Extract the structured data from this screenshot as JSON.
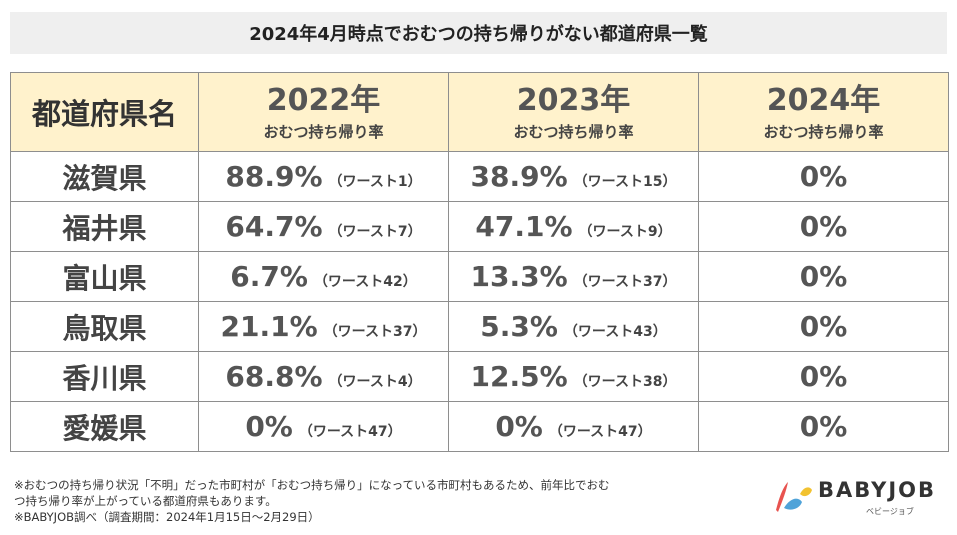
{
  "title": "2024年4月時点でおむつの持ち帰りがない都道府県一覧",
  "table": {
    "pref_header": "都道府県名",
    "year_headers": [
      {
        "year": "2022年",
        "sub": "おむつ持ち帰り率"
      },
      {
        "year": "2023年",
        "sub": "おむつ持ち帰り率"
      },
      {
        "year": "2024年",
        "sub": "おむつ持ち帰り率"
      }
    ],
    "rows": [
      {
        "pref": "滋賀県",
        "y2022": {
          "pct": "88.9%",
          "rank": "（ワースト1）"
        },
        "y2023": {
          "pct": "38.9%",
          "rank": "（ワースト15）"
        },
        "y2024": {
          "pct": "0%"
        }
      },
      {
        "pref": "福井県",
        "y2022": {
          "pct": "64.7%",
          "rank": "（ワースト7）"
        },
        "y2023": {
          "pct": "47.1%",
          "rank": "（ワースト9）"
        },
        "y2024": {
          "pct": "0%"
        }
      },
      {
        "pref": "富山県",
        "y2022": {
          "pct": "6.7%",
          "rank": "（ワースト42）"
        },
        "y2023": {
          "pct": "13.3%",
          "rank": "（ワースト37）"
        },
        "y2024": {
          "pct": "0%"
        }
      },
      {
        "pref": "鳥取県",
        "y2022": {
          "pct": "21.1%",
          "rank": "（ワースト37）"
        },
        "y2023": {
          "pct": "5.3%",
          "rank": "（ワースト43）"
        },
        "y2024": {
          "pct": "0%"
        }
      },
      {
        "pref": "香川県",
        "y2022": {
          "pct": "68.8%",
          "rank": "（ワースト4）"
        },
        "y2023": {
          "pct": "12.5%",
          "rank": "（ワースト38）"
        },
        "y2024": {
          "pct": "0%"
        }
      },
      {
        "pref": "愛媛県",
        "y2022": {
          "pct": "0%",
          "rank": "（ワースト47）"
        },
        "y2023": {
          "pct": "0%",
          "rank": "（ワースト47）"
        },
        "y2024": {
          "pct": "0%"
        }
      }
    ]
  },
  "notes": [
    "※おむつの持ち帰り状況「不明」だった市町村が「おむつ持ち帰り」になっている市町村もあるため、前年比でおむ",
    "つ持ち帰り率が上がっている都道府県もあります。",
    "※BABYJOB調べ（調査期間：2024年1月15日〜2月29日）"
  ],
  "logo": {
    "name": "BABYJOB",
    "sub": "ベビージョブ"
  },
  "colors": {
    "header_bg": "#fff2cc",
    "title_bg": "#efefef",
    "border": "#8e8e8e",
    "logo_red": "#e8534f",
    "logo_blue": "#4fa3d9",
    "logo_yellow": "#f2c230"
  }
}
